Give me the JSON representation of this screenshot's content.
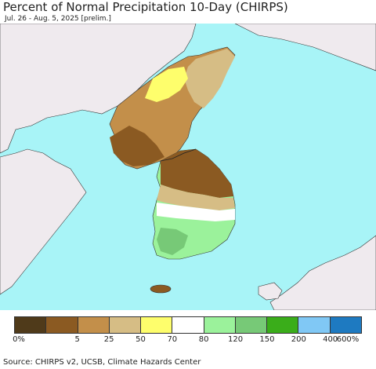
{
  "header": {
    "title": "Percent of Normal Precipitation 10-Day (CHIRPS)",
    "subtitle": "Jul. 26 - Aug. 5, 2025 [prelim.]"
  },
  "legend": {
    "colors": [
      "#4f3a1a",
      "#8b5a22",
      "#c38f4a",
      "#d6bd85",
      "#fefe6c",
      "#ffffff",
      "#9bf29b",
      "#77c977",
      "#3aad1a",
      "#80c8f5",
      "#1e7ac1"
    ],
    "labels": [
      "0%",
      "5",
      "25",
      "50",
      "70",
      "80",
      "120",
      "150",
      "200",
      "400",
      "600%"
    ]
  },
  "footer": {
    "source": "Source: CHIRPS v2, UCSB, Climate Hazards Center"
  },
  "map_colors": {
    "ocean": "#a8f4f7",
    "land_gray": "#efeaee",
    "no_data_white": "#ffffff"
  }
}
